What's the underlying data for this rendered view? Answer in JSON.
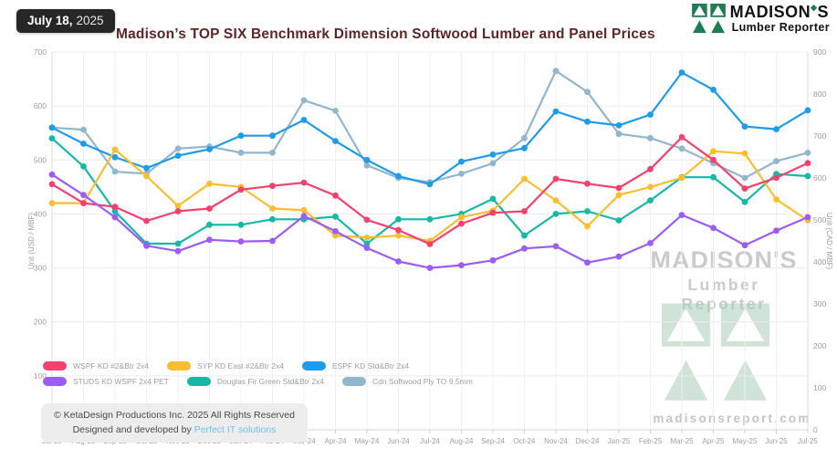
{
  "header": {
    "date_badge": {
      "date": "July 18,",
      "year": "2025"
    },
    "title": "Madison’s TOP SIX Benchmark Dimension Softwood Lumber and Panel Prices",
    "brand": {
      "name": "MADISON",
      "apostrophe_glyph": "◆",
      "name_suffix": "S",
      "subtitle": "Lumber Reporter",
      "green": "#1e7d52"
    }
  },
  "chart_data": {
    "type": "line",
    "title": "Madison’s TOP SIX Benchmark Dimension Softwood Lumber and Panel Prices",
    "categories": [
      "Jul-23",
      "Aug-23",
      "Sep-23",
      "Oct-23",
      "Nov-23",
      "Dec-23",
      "Jan-24",
      "Feb-24",
      "Mar-24",
      "Apr-24",
      "May-24",
      "Jun-24",
      "Jul-24",
      "Aug-24",
      "Sep-24",
      "Oct-24",
      "Nov-24",
      "Dec-24",
      "Jan-25",
      "Feb-25",
      "Mar-25",
      "Apr-25",
      "May-25",
      "Jun-25",
      "Jul-25"
    ],
    "series": [
      {
        "name": "WSPF KD #2&Btr 2x4",
        "color": "#f4416e",
        "axis": "left",
        "values": [
          455,
          420,
          413,
          387,
          405,
          410,
          445,
          452,
          458,
          434,
          389,
          370,
          344,
          382,
          402,
          405,
          465,
          456,
          448,
          483,
          542,
          500,
          447,
          467,
          494
        ]
      },
      {
        "name": "SYP KD East #2&Btr 2x4",
        "color": "#fcbd2e",
        "axis": "left",
        "values": [
          420,
          420,
          519,
          470,
          415,
          456,
          450,
          410,
          407,
          360,
          356,
          360,
          350,
          394,
          406,
          465,
          425,
          377,
          435,
          450,
          467,
          516,
          512,
          427,
          388
        ]
      },
      {
        "name": "ESPF KD Std&Btr 2x4",
        "color": "#1e9ceb",
        "axis": "left",
        "values": [
          560,
          530,
          505,
          485,
          508,
          520,
          545,
          545,
          574,
          535,
          500,
          470,
          455,
          497,
          510,
          522,
          590,
          571,
          564,
          584,
          662,
          630,
          562,
          557,
          592
        ]
      },
      {
        "name": "STUDS KD WSPF 2x4 PET",
        "color": "#9b5cf7",
        "axis": "left",
        "values": [
          473,
          435,
          394,
          341,
          331,
          352,
          349,
          350,
          396,
          368,
          337,
          312,
          300,
          305,
          314,
          336,
          340,
          310,
          321,
          346,
          398,
          374,
          342,
          369,
          394
        ]
      },
      {
        "name": "Douglas Fir Green Std&Btr 2x4",
        "color": "#16b8a7",
        "axis": "left",
        "values": [
          540,
          488,
          405,
          345,
          345,
          380,
          380,
          390,
          390,
          395,
          345,
          390,
          390,
          400,
          428,
          360,
          400,
          405,
          388,
          425,
          468,
          468,
          422,
          474,
          470
        ]
      },
      {
        "name": "Cdn Softwood Ply TO 9.5mm",
        "color": "#92b7cc",
        "axis": "right",
        "values": [
          720,
          715,
          615,
          610,
          670,
          675,
          660,
          660,
          785,
          760,
          630,
          600,
          590,
          610,
          635,
          695,
          855,
          805,
          705,
          695,
          670,
          635,
          600,
          640,
          660
        ]
      }
    ],
    "y_left": {
      "label": "Unit (USD / MBF)",
      "min": 0,
      "max": 700,
      "ticks": [
        0,
        100,
        200,
        300,
        400,
        500,
        600,
        700
      ]
    },
    "y_right": {
      "label": "Unit (CAD / MBF)",
      "min": 0,
      "max": 900,
      "ticks": [
        0,
        100,
        200,
        300,
        400,
        500,
        600,
        700,
        800,
        900
      ]
    },
    "grid": true,
    "legend_position": "bottom-left",
    "draw_order": [
      5,
      2,
      4,
      1,
      0,
      3
    ]
  },
  "watermark": {
    "line1": "MADISON'S",
    "line2": "Lumber Reporter",
    "site": "madisonsreport.com"
  },
  "footer": {
    "copyright": "© KetaDesign Productions Inc. 2025 All Rights Reserved",
    "designed_prefix": "Designed and developed by ",
    "designed_link": "Perfect IT solutions"
  }
}
